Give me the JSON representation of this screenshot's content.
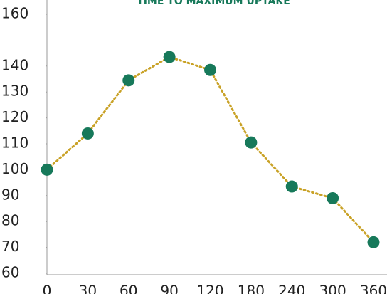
{
  "chart_data": {
    "type": "line",
    "title": "TIME TO MAXIMUM UPTAKE",
    "categories": [
      "0",
      "30",
      "60",
      "90",
      "120",
      "180",
      "240",
      "300",
      "360"
    ],
    "series": [
      {
        "name": null,
        "line_color": "#c9a227",
        "marker_color": "#17795a",
        "values": [
          100,
          114,
          134.5,
          143.5,
          138.5,
          110.5,
          93.5,
          89,
          72
        ]
      }
    ],
    "ylim": [
      60,
      160
    ],
    "yticks": [
      60,
      70,
      80,
      90,
      100,
      110,
      120,
      130,
      140,
      160
    ],
    "grid": false
  }
}
